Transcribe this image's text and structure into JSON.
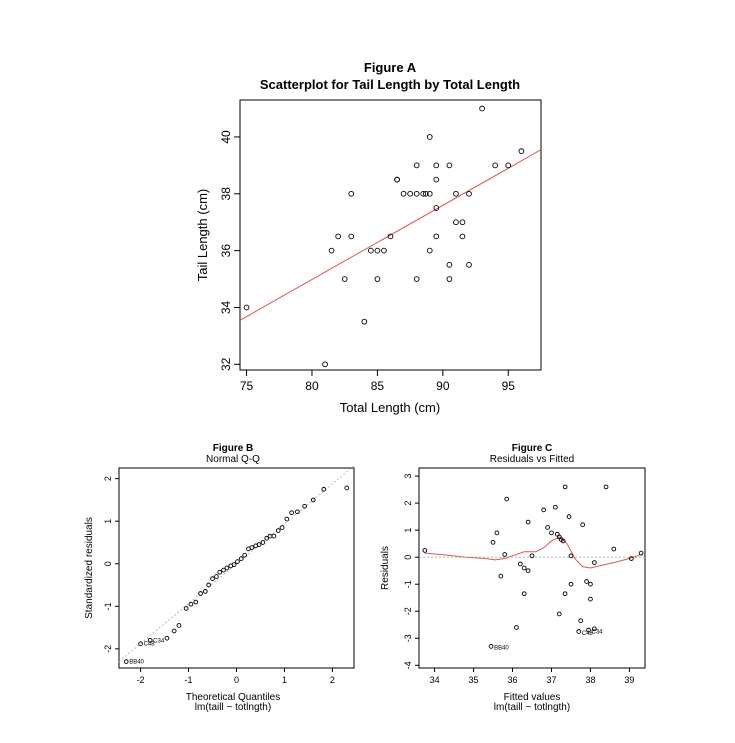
{
  "chart_data": [
    {
      "id": "A",
      "type": "scatter",
      "title": "Figure A",
      "subtitle": "Scatterplot for Tail Length by Total Length",
      "xlabel": "Total Length (cm)",
      "ylabel": "Tail Length (cm)",
      "xlim": [
        74.5,
        97.5
      ],
      "ylim": [
        31.8,
        41.3
      ],
      "xticks": [
        75,
        80,
        85,
        90,
        95
      ],
      "yticks": [
        32,
        34,
        36,
        38,
        40
      ],
      "line": {
        "x": [
          74.5,
          97.5
        ],
        "y": [
          33.55,
          39.55
        ],
        "color": "#e05555"
      },
      "points": [
        {
          "x": 75,
          "y": 34
        },
        {
          "x": 81,
          "y": 32
        },
        {
          "x": 81.5,
          "y": 36
        },
        {
          "x": 82,
          "y": 36.5
        },
        {
          "x": 82.5,
          "y": 35
        },
        {
          "x": 83,
          "y": 36.5
        },
        {
          "x": 83,
          "y": 38
        },
        {
          "x": 84,
          "y": 33.5
        },
        {
          "x": 84.5,
          "y": 36
        },
        {
          "x": 85,
          "y": 36
        },
        {
          "x": 85,
          "y": 35
        },
        {
          "x": 85.5,
          "y": 36
        },
        {
          "x": 86,
          "y": 36.5
        },
        {
          "x": 86.5,
          "y": 38.5
        },
        {
          "x": 86.5,
          "y": 38.5
        },
        {
          "x": 87,
          "y": 38
        },
        {
          "x": 87.5,
          "y": 38
        },
        {
          "x": 88,
          "y": 38
        },
        {
          "x": 88,
          "y": 39
        },
        {
          "x": 88,
          "y": 35
        },
        {
          "x": 88.5,
          "y": 38
        },
        {
          "x": 88.7,
          "y": 38
        },
        {
          "x": 89,
          "y": 38
        },
        {
          "x": 89,
          "y": 40
        },
        {
          "x": 89,
          "y": 36
        },
        {
          "x": 89.5,
          "y": 39
        },
        {
          "x": 89.5,
          "y": 38.5
        },
        {
          "x": 89.5,
          "y": 37.5
        },
        {
          "x": 89.5,
          "y": 36.5
        },
        {
          "x": 90.5,
          "y": 39
        },
        {
          "x": 90.5,
          "y": 35.5
        },
        {
          "x": 90.5,
          "y": 35
        },
        {
          "x": 91,
          "y": 38
        },
        {
          "x": 91,
          "y": 37
        },
        {
          "x": 91.5,
          "y": 37
        },
        {
          "x": 91.5,
          "y": 36.5
        },
        {
          "x": 92,
          "y": 38
        },
        {
          "x": 92,
          "y": 35.5
        },
        {
          "x": 93,
          "y": 41
        },
        {
          "x": 94,
          "y": 39
        },
        {
          "x": 95,
          "y": 39
        },
        {
          "x": 96,
          "y": 39.5
        }
      ]
    },
    {
      "id": "B",
      "type": "scatter",
      "title": "Figure B",
      "subtitle": "Normal Q-Q",
      "xlabel": "Theoretical Quantiles",
      "xlabel2": "lm(taill ~ totlngth)",
      "ylabel": "Standardized residuals",
      "xlim": [
        -2.45,
        2.45
      ],
      "ylim": [
        -2.45,
        2.25
      ],
      "xticks": [
        -2,
        -1,
        0,
        1,
        2
      ],
      "yticks": [
        -2,
        -1,
        0,
        1,
        2
      ],
      "refline": {
        "x": [
          -2.45,
          2.45
        ],
        "y": [
          -2.3,
          2.3
        ],
        "color": "#aaaaaa"
      },
      "labels": [
        {
          "x": -2.3,
          "y": -2.3,
          "text": "BB40"
        },
        {
          "x": -2.0,
          "y": -1.88,
          "text": "C48"
        },
        {
          "x": -1.8,
          "y": -1.8,
          "text": "C34"
        }
      ],
      "points": [
        {
          "x": -2.3,
          "y": -2.3
        },
        {
          "x": -2.0,
          "y": -1.88
        },
        {
          "x": -1.8,
          "y": -1.8
        },
        {
          "x": -1.45,
          "y": -1.75
        },
        {
          "x": -1.3,
          "y": -1.58
        },
        {
          "x": -1.2,
          "y": -1.45
        },
        {
          "x": -1.05,
          "y": -1.05
        },
        {
          "x": -0.95,
          "y": -0.95
        },
        {
          "x": -0.85,
          "y": -0.9
        },
        {
          "x": -0.75,
          "y": -0.7
        },
        {
          "x": -0.65,
          "y": -0.65
        },
        {
          "x": -0.58,
          "y": -0.5
        },
        {
          "x": -0.5,
          "y": -0.35
        },
        {
          "x": -0.42,
          "y": -0.3
        },
        {
          "x": -0.35,
          "y": -0.2
        },
        {
          "x": -0.27,
          "y": -0.15
        },
        {
          "x": -0.2,
          "y": -0.1
        },
        {
          "x": -0.12,
          "y": -0.05
        },
        {
          "x": -0.05,
          "y": -0.02
        },
        {
          "x": 0.02,
          "y": 0.05
        },
        {
          "x": 0.1,
          "y": 0.12
        },
        {
          "x": 0.17,
          "y": 0.2
        },
        {
          "x": 0.25,
          "y": 0.35
        },
        {
          "x": 0.32,
          "y": 0.38
        },
        {
          "x": 0.4,
          "y": 0.42
        },
        {
          "x": 0.47,
          "y": 0.45
        },
        {
          "x": 0.55,
          "y": 0.5
        },
        {
          "x": 0.63,
          "y": 0.6
        },
        {
          "x": 0.7,
          "y": 0.65
        },
        {
          "x": 0.78,
          "y": 0.65
        },
        {
          "x": 0.87,
          "y": 0.78
        },
        {
          "x": 0.95,
          "y": 0.85
        },
        {
          "x": 1.05,
          "y": 1.05
        },
        {
          "x": 1.15,
          "y": 1.2
        },
        {
          "x": 1.27,
          "y": 1.22
        },
        {
          "x": 1.42,
          "y": 1.35
        },
        {
          "x": 1.6,
          "y": 1.5
        },
        {
          "x": 1.82,
          "y": 1.75
        },
        {
          "x": 2.3,
          "y": 1.78
        }
      ]
    },
    {
      "id": "C",
      "type": "scatter",
      "title": "Figure C",
      "subtitle": "Residuals vs Fitted",
      "xlabel": "Fitted values",
      "xlabel2": "lm(taill ~ totlngth)",
      "ylabel": "Residuals",
      "xlim": [
        33.6,
        39.4
      ],
      "ylim": [
        -4.1,
        3.3
      ],
      "xticks": [
        34,
        35,
        36,
        37,
        38,
        39
      ],
      "yticks": [
        -4,
        -3,
        -2,
        -1,
        0,
        1,
        2,
        3
      ],
      "refline": {
        "y": 0,
        "color": "#aaaaaa"
      },
      "smooth": {
        "x": [
          33.75,
          34.3,
          34.8,
          35.3,
          35.55,
          35.8,
          36.0,
          36.3,
          36.6,
          36.8,
          37.0,
          37.2,
          37.4,
          37.6,
          37.8,
          38.0,
          38.3,
          38.6,
          39.0,
          39.35
        ],
        "y": [
          0.15,
          0.08,
          0.0,
          -0.05,
          -0.1,
          -0.05,
          0.05,
          0.2,
          0.2,
          0.35,
          0.6,
          0.75,
          0.5,
          -0.05,
          -0.35,
          -0.4,
          -0.3,
          -0.2,
          -0.05,
          0.12
        ],
        "color": "#e05555"
      },
      "labels": [
        {
          "x": 35.45,
          "y": -3.35,
          "text": "BB40"
        },
        {
          "x": 37.7,
          "y": -2.8,
          "text": "C48"
        },
        {
          "x": 37.95,
          "y": -2.75,
          "text": "C34"
        }
      ],
      "points": [
        {
          "x": 33.75,
          "y": 0.25
        },
        {
          "x": 35.45,
          "y": -3.3
        },
        {
          "x": 35.5,
          "y": 0.55
        },
        {
          "x": 35.6,
          "y": 0.9
        },
        {
          "x": 35.7,
          "y": -0.7
        },
        {
          "x": 35.85,
          "y": 2.15
        },
        {
          "x": 35.8,
          "y": 0.1
        },
        {
          "x": 36.1,
          "y": -2.6
        },
        {
          "x": 36.2,
          "y": -0.25
        },
        {
          "x": 36.3,
          "y": -0.4
        },
        {
          "x": 36.3,
          "y": -1.35
        },
        {
          "x": 36.4,
          "y": -0.5
        },
        {
          "x": 36.4,
          "y": 1.3
        },
        {
          "x": 36.5,
          "y": 0.05
        },
        {
          "x": 36.8,
          "y": 1.75
        },
        {
          "x": 36.9,
          "y": 1.1
        },
        {
          "x": 37.0,
          "y": 0.9
        },
        {
          "x": 37.1,
          "y": 1.85
        },
        {
          "x": 37.15,
          "y": 0.85
        },
        {
          "x": 37.2,
          "y": 0.75
        },
        {
          "x": 37.25,
          "y": 0.65
        },
        {
          "x": 37.3,
          "y": 0.6
        },
        {
          "x": 37.35,
          "y": 2.6
        },
        {
          "x": 37.45,
          "y": 1.5
        },
        {
          "x": 37.5,
          "y": 0.05
        },
        {
          "x": 37.5,
          "y": -1.0
        },
        {
          "x": 37.2,
          "y": -2.1
        },
        {
          "x": 37.35,
          "y": -1.35
        },
        {
          "x": 37.7,
          "y": -2.75
        },
        {
          "x": 37.8,
          "y": 1.2
        },
        {
          "x": 37.75,
          "y": -2.35
        },
        {
          "x": 37.9,
          "y": -0.9
        },
        {
          "x": 38.0,
          "y": -1.0
        },
        {
          "x": 38.0,
          "y": -1.55
        },
        {
          "x": 38.1,
          "y": -0.2
        },
        {
          "x": 37.95,
          "y": -2.7
        },
        {
          "x": 38.1,
          "y": -2.65
        },
        {
          "x": 38.4,
          "y": 2.6
        },
        {
          "x": 38.6,
          "y": 0.3
        },
        {
          "x": 39.05,
          "y": -0.05
        },
        {
          "x": 39.3,
          "y": 0.15
        }
      ]
    }
  ]
}
